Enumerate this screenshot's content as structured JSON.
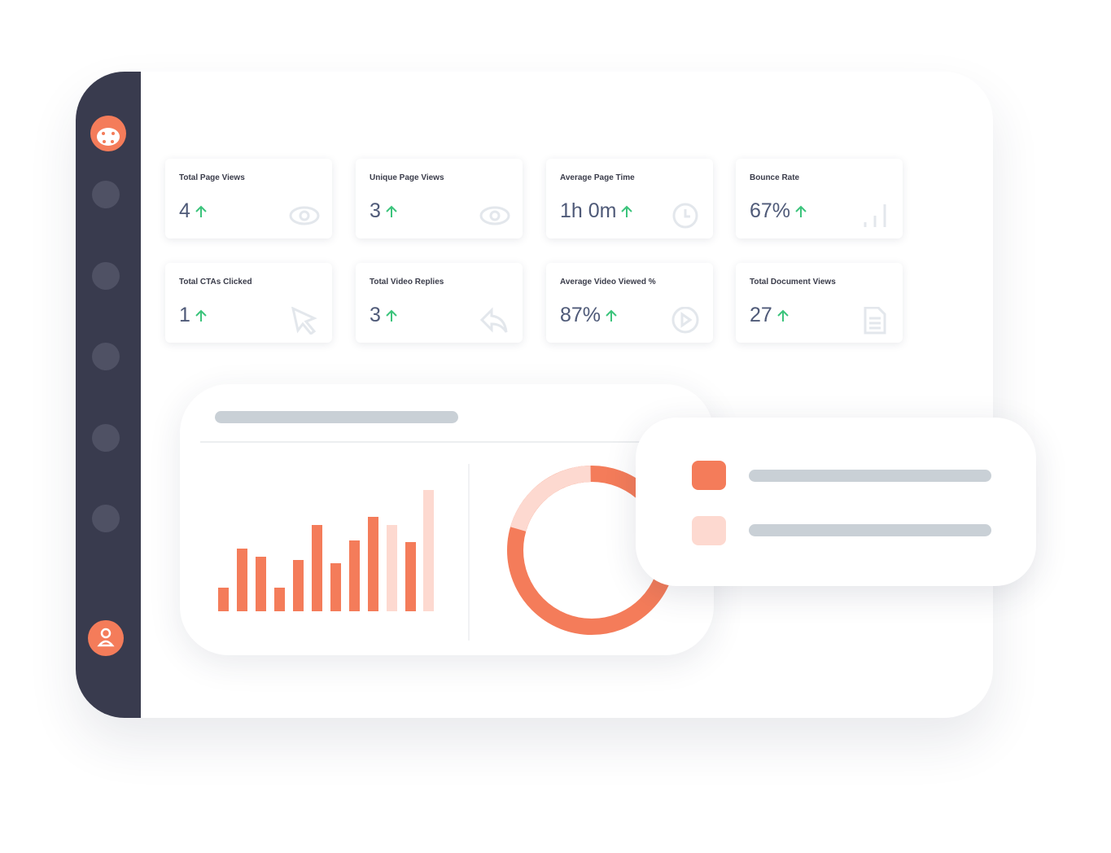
{
  "cards": [
    {
      "label": "Total Page Views",
      "value": "4"
    },
    {
      "label": "Unique Page Views",
      "value": "3"
    },
    {
      "label": "Average Page Time",
      "value": "1h 0m"
    },
    {
      "label": "Bounce Rate",
      "value": "67%"
    },
    {
      "label": "Total CTAs Clicked",
      "value": "1"
    },
    {
      "label": "Total Video Replies",
      "value": "3"
    },
    {
      "label": "Average Video Viewed %",
      "value": "87%"
    },
    {
      "label": "Total Document Views",
      "value": "27"
    }
  ]
}
